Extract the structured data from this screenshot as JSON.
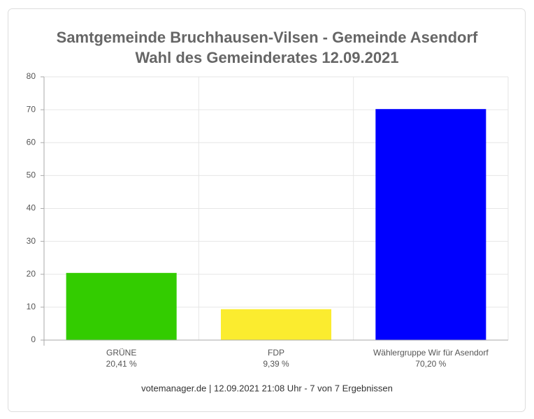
{
  "chart_data": {
    "type": "bar",
    "title": [
      "Samtgemeinde Bruchhausen-Vilsen - Gemeinde Asendorf",
      "Wahl des Gemeinderates 12.09.2021"
    ],
    "categories": [
      "GRÜNE",
      "FDP",
      "Wählergruppe Wir für Asendorf"
    ],
    "values": [
      20.41,
      9.39,
      70.2
    ],
    "value_labels": [
      "20,41 %",
      "9,39 %",
      "70,20 %"
    ],
    "colors": [
      "#33cc00",
      "#fbec2f",
      "#0000ff"
    ],
    "ylim": [
      0,
      80
    ],
    "yticks": [
      0,
      10,
      20,
      30,
      40,
      50,
      60,
      70,
      80
    ],
    "grid": true,
    "footer": "votemanager.de | 12.09.2021 21:08 Uhr - 7 von 7 Ergebnissen"
  }
}
